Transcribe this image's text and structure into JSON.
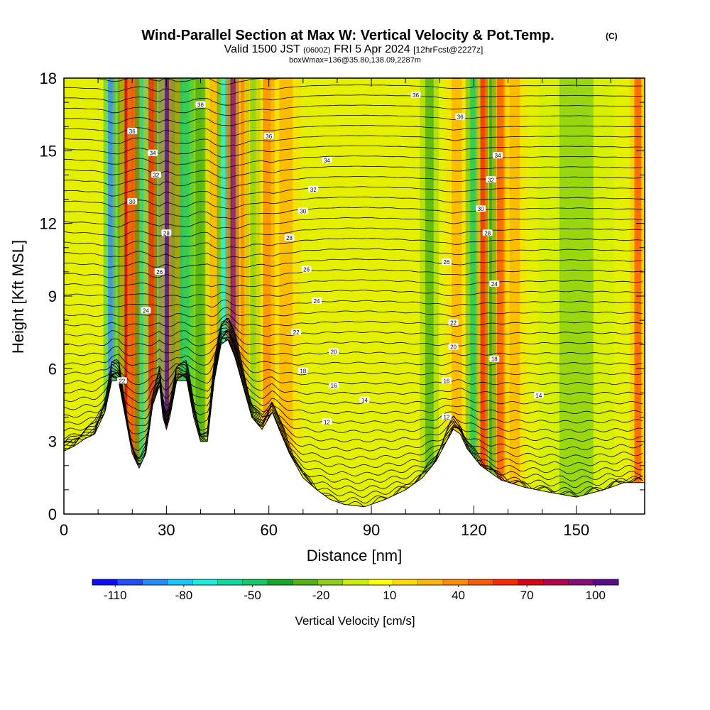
{
  "chart_data": {
    "type": "heatmap",
    "title": "Wind-Parallel Section at Max W: Vertical Velocity & Pot.Temp.",
    "title_mark": "(C)",
    "subtitle_parts": {
      "valid": "Valid 1500 JST",
      "utc": "(0600Z)",
      "date": "FRI 5 Apr 2024",
      "fcst": "[12hrFcst@2227z]"
    },
    "subtitle2": "boxWmax=136@35.80,138.09,2287m",
    "xlabel": "Distance [nm]",
    "ylabel": "Height [Kft MSL]",
    "xlim": [
      0,
      170
    ],
    "ylim": [
      0,
      18
    ],
    "x_ticks": [
      0,
      30,
      60,
      90,
      120,
      150
    ],
    "y_ticks": [
      0,
      3,
      6,
      9,
      12,
      15,
      18
    ],
    "colorbar": {
      "title": "Vertical Velocity [cm/s]",
      "tick_labels": [
        -110,
        -80,
        -50,
        -20,
        10,
        40,
        70,
        100
      ],
      "min": -120,
      "max": 110,
      "colors": [
        "#0a0aff",
        "#1e50ff",
        "#1e8cff",
        "#14c8ff",
        "#14f0dc",
        "#0adca0",
        "#14c864",
        "#14aa28",
        "#50b414",
        "#8cd214",
        "#c8f000",
        "#ffff00",
        "#ffdc00",
        "#ffb400",
        "#ff8c00",
        "#ff5a00",
        "#ff2800",
        "#dc0014",
        "#b40050",
        "#8c0a78",
        "#5a0a8c"
      ]
    },
    "terrain_profile": [
      [
        0,
        2.6
      ],
      [
        3,
        2.8
      ],
      [
        6,
        3.1
      ],
      [
        9,
        3.3
      ],
      [
        12,
        4.2
      ],
      [
        14,
        5.5
      ],
      [
        16,
        5.5
      ],
      [
        18,
        4.0
      ],
      [
        20,
        2.5
      ],
      [
        22,
        1.9
      ],
      [
        24,
        2.5
      ],
      [
        26,
        4.5
      ],
      [
        28,
        5.3
      ],
      [
        29,
        4.0
      ],
      [
        30,
        3.5
      ],
      [
        31,
        4.0
      ],
      [
        33,
        5.5
      ],
      [
        36,
        5.5
      ],
      [
        38,
        4.0
      ],
      [
        40,
        3.0
      ],
      [
        42,
        3.0
      ],
      [
        44,
        5.5
      ],
      [
        46,
        7.0
      ],
      [
        48,
        7.2
      ],
      [
        50,
        6.5
      ],
      [
        52,
        5.5
      ],
      [
        55,
        4.0
      ],
      [
        58,
        3.5
      ],
      [
        61,
        4.2
      ],
      [
        63,
        3.5
      ],
      [
        66,
        2.5
      ],
      [
        70,
        1.5
      ],
      [
        74,
        1.0
      ],
      [
        78,
        0.6
      ],
      [
        82,
        0.4
      ],
      [
        88,
        0.3
      ],
      [
        94,
        0.6
      ],
      [
        100,
        1.0
      ],
      [
        105,
        1.5
      ],
      [
        109,
        2.2
      ],
      [
        112,
        3.0
      ],
      [
        114,
        3.5
      ],
      [
        116,
        3.3
      ],
      [
        118,
        2.7
      ],
      [
        122,
        2.0
      ],
      [
        128,
        1.4
      ],
      [
        135,
        1.1
      ],
      [
        142,
        0.9
      ],
      [
        150,
        0.7
      ],
      [
        158,
        1.0
      ],
      [
        164,
        1.3
      ],
      [
        170,
        1.3
      ]
    ],
    "potential_temperature_labels": [
      {
        "x": 17,
        "y": 5.5,
        "label": "22"
      },
      {
        "x": 24,
        "y": 8.4,
        "label": "24"
      },
      {
        "x": 28,
        "y": 10.0,
        "label": "26"
      },
      {
        "x": 30,
        "y": 11.6,
        "label": "28"
      },
      {
        "x": 20,
        "y": 12.9,
        "label": "30"
      },
      {
        "x": 27,
        "y": 14.0,
        "label": "32"
      },
      {
        "x": 26,
        "y": 14.9,
        "label": "34"
      },
      {
        "x": 20,
        "y": 15.8,
        "label": "36"
      },
      {
        "x": 40,
        "y": 16.9,
        "label": "36"
      },
      {
        "x": 60,
        "y": 15.6,
        "label": "36"
      },
      {
        "x": 77,
        "y": 14.6,
        "label": "34"
      },
      {
        "x": 73,
        "y": 13.4,
        "label": "32"
      },
      {
        "x": 70,
        "y": 12.5,
        "label": "30"
      },
      {
        "x": 66,
        "y": 11.4,
        "label": "28"
      },
      {
        "x": 71,
        "y": 10.1,
        "label": "26"
      },
      {
        "x": 74,
        "y": 8.8,
        "label": "24"
      },
      {
        "x": 68,
        "y": 7.5,
        "label": "22"
      },
      {
        "x": 79,
        "y": 6.7,
        "label": "20"
      },
      {
        "x": 70,
        "y": 5.9,
        "label": "18"
      },
      {
        "x": 79,
        "y": 5.3,
        "label": "16"
      },
      {
        "x": 88,
        "y": 4.7,
        "label": "14"
      },
      {
        "x": 77,
        "y": 3.8,
        "label": "12"
      },
      {
        "x": 103,
        "y": 17.3,
        "label": "36"
      },
      {
        "x": 116,
        "y": 16.4,
        "label": "36"
      },
      {
        "x": 127,
        "y": 14.8,
        "label": "34"
      },
      {
        "x": 125,
        "y": 13.8,
        "label": "32"
      },
      {
        "x": 122,
        "y": 12.6,
        "label": "30"
      },
      {
        "x": 124,
        "y": 11.6,
        "label": "28"
      },
      {
        "x": 112,
        "y": 10.4,
        "label": "26"
      },
      {
        "x": 126,
        "y": 9.5,
        "label": "24"
      },
      {
        "x": 114,
        "y": 7.9,
        "label": "22"
      },
      {
        "x": 114,
        "y": 6.9,
        "label": "20"
      },
      {
        "x": 126,
        "y": 6.4,
        "label": "18"
      },
      {
        "x": 112,
        "y": 5.5,
        "label": "16"
      },
      {
        "x": 139,
        "y": 4.9,
        "label": "14"
      },
      {
        "x": 112,
        "y": 4.0,
        "label": "12"
      }
    ],
    "updraft_bands": [
      {
        "x": 14,
        "w": 2.2,
        "v": -95
      },
      {
        "x": 17,
        "w": 2.5,
        "v": -30
      },
      {
        "x": 19,
        "w": 2.5,
        "v": 75
      },
      {
        "x": 21,
        "w": 2.2,
        "v": 55
      },
      {
        "x": 23.5,
        "w": 2.5,
        "v": -65
      },
      {
        "x": 26,
        "w": 2.5,
        "v": 60
      },
      {
        "x": 28.5,
        "w": 2.0,
        "v": -55
      },
      {
        "x": 31,
        "w": 3.0,
        "v": 100
      },
      {
        "x": 33.5,
        "w": 2.5,
        "v": 40
      },
      {
        "x": 36,
        "w": 4.0,
        "v": -45
      },
      {
        "x": 40,
        "w": 3.0,
        "v": -25
      },
      {
        "x": 44,
        "w": 2.5,
        "v": 30
      },
      {
        "x": 47,
        "w": 2.0,
        "v": -70
      },
      {
        "x": 50,
        "w": 2.5,
        "v": 90
      },
      {
        "x": 53,
        "w": 2.5,
        "v": 40
      },
      {
        "x": 56,
        "w": 3.0,
        "v": -15
      },
      {
        "x": 60,
        "w": 3.5,
        "v": 35
      },
      {
        "x": 65,
        "w": 4.0,
        "v": 25
      },
      {
        "x": 107,
        "w": 2.5,
        "v": -30
      },
      {
        "x": 115,
        "w": 3.0,
        "v": 30
      },
      {
        "x": 120,
        "w": 2.2,
        "v": -45
      },
      {
        "x": 123,
        "w": 2.2,
        "v": 60
      },
      {
        "x": 125.5,
        "w": 2.0,
        "v": -40
      },
      {
        "x": 128,
        "w": 2.5,
        "v": 45
      },
      {
        "x": 132,
        "w": 3.0,
        "v": 25
      },
      {
        "x": 150,
        "w": 10.0,
        "v": -12
      },
      {
        "x": 168,
        "w": 2.0,
        "v": 55
      }
    ]
  }
}
